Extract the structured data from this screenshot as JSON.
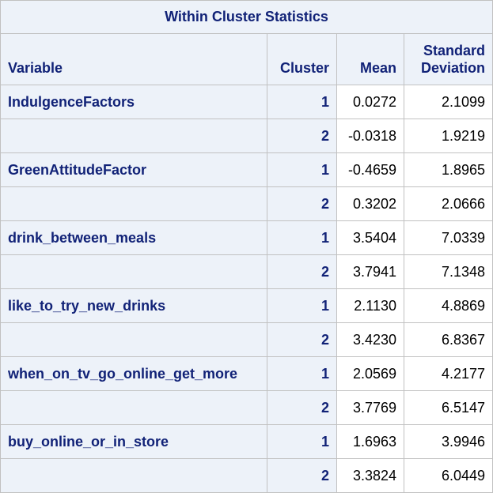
{
  "table": {
    "title": "Within Cluster Statistics",
    "headers": {
      "variable": "Variable",
      "cluster": "Cluster",
      "mean": "Mean",
      "sd_line1": "Standard",
      "sd_line2": "Deviation"
    },
    "rows": [
      {
        "variable": "IndulgenceFactors",
        "cluster": "1",
        "mean": "0.0272",
        "sd": "2.1099"
      },
      {
        "variable": "",
        "cluster": "2",
        "mean": "-0.0318",
        "sd": "1.9219"
      },
      {
        "variable": "GreenAttitudeFactor",
        "cluster": "1",
        "mean": "-0.4659",
        "sd": "1.8965"
      },
      {
        "variable": "",
        "cluster": "2",
        "mean": "0.3202",
        "sd": "2.0666"
      },
      {
        "variable": "drink_between_meals",
        "cluster": "1",
        "mean": "3.5404",
        "sd": "7.0339"
      },
      {
        "variable": "",
        "cluster": "2",
        "mean": "3.7941",
        "sd": "7.1348"
      },
      {
        "variable": "like_to_try_new_drinks",
        "cluster": "1",
        "mean": "2.1130",
        "sd": "4.8869"
      },
      {
        "variable": "",
        "cluster": "2",
        "mean": "3.4230",
        "sd": "6.8367"
      },
      {
        "variable": "when_on_tv_go_online_get_more",
        "cluster": "1",
        "mean": "2.0569",
        "sd": "4.2177"
      },
      {
        "variable": "",
        "cluster": "2",
        "mean": "3.7769",
        "sd": "6.5147"
      },
      {
        "variable": "buy_online_or_in_store",
        "cluster": "1",
        "mean": "1.6963",
        "sd": "3.9946"
      },
      {
        "variable": "",
        "cluster": "2",
        "mean": "3.3824",
        "sd": "6.0449"
      }
    ]
  }
}
